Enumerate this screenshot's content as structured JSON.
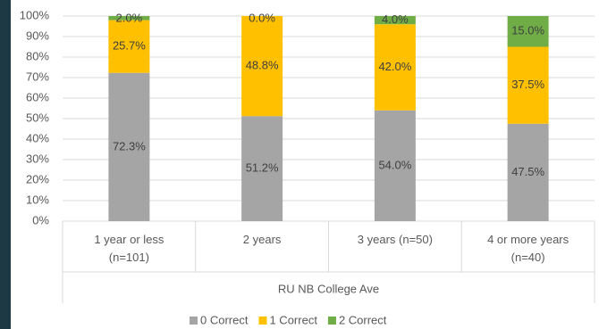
{
  "chart_data": {
    "type": "stacked_bar",
    "categories": [
      "1 year or less\n(n=101)",
      "2 years",
      "3 years (n=50)",
      "4 or more years\n(n=40)"
    ],
    "group_label": "RU NB College Ave",
    "series": [
      {
        "name": "0 Correct",
        "color": "#a5a5a5",
        "values": [
          72.3,
          51.2,
          54.0,
          47.5
        ],
        "value_labels": [
          "72.3%",
          "51.2%",
          "54.0%",
          "47.5%"
        ]
      },
      {
        "name": "1 Correct",
        "color": "#ffc000",
        "values": [
          25.7,
          48.8,
          42.0,
          37.5
        ],
        "value_labels": [
          "25.7%",
          "48.8%",
          "42.0%",
          "37.5%"
        ]
      },
      {
        "name": "2 Correct",
        "color": "#70ad47",
        "values": [
          2.0,
          0.0,
          4.0,
          15.0
        ],
        "value_labels": [
          "2.0%",
          "0.0%",
          "4.0%",
          "15.0%"
        ]
      }
    ],
    "ylim": [
      0,
      100
    ],
    "yticks": [
      {
        "value": 0,
        "label": "0%"
      },
      {
        "value": 10,
        "label": "10%"
      },
      {
        "value": 20,
        "label": "20%"
      },
      {
        "value": 30,
        "label": "30%"
      },
      {
        "value": 40,
        "label": "40%"
      },
      {
        "value": 50,
        "label": "50%"
      },
      {
        "value": 60,
        "label": "60%"
      },
      {
        "value": 70,
        "label": "70%"
      },
      {
        "value": 80,
        "label": "80%"
      },
      {
        "value": 90,
        "label": "90%"
      },
      {
        "value": 100,
        "label": "100%"
      }
    ],
    "grid": true,
    "legend": "bottom"
  }
}
